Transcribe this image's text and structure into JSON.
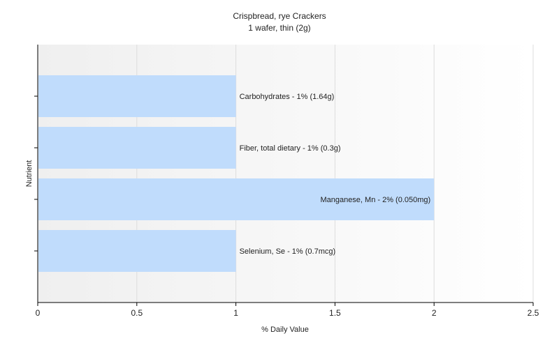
{
  "chart_data": {
    "type": "bar",
    "orientation": "horizontal",
    "title": "Crispbread, rye Crackers",
    "subtitle": "1 wafer, thin (2g)",
    "xlabel": "% Daily Value",
    "ylabel": "Nutrient",
    "xlim": [
      0,
      2.5
    ],
    "x_ticks": [
      "0",
      "0.5",
      "1",
      "1.5",
      "2",
      "2.5"
    ],
    "grid": true,
    "legend": "none",
    "categories": [
      "Carbohydrates",
      "Fiber, total dietary",
      "Manganese, Mn",
      "Selenium, Se"
    ],
    "values": [
      1,
      1,
      2,
      1
    ],
    "labels": [
      "Carbohydrates - 1% (1.64g)",
      "Fiber, total dietary - 1% (0.3g)",
      "Manganese, Mn - 2% (0.050mg)",
      "Selenium, Se - 1% (0.7mcg)"
    ],
    "bar_color": "#c0dcfc"
  }
}
